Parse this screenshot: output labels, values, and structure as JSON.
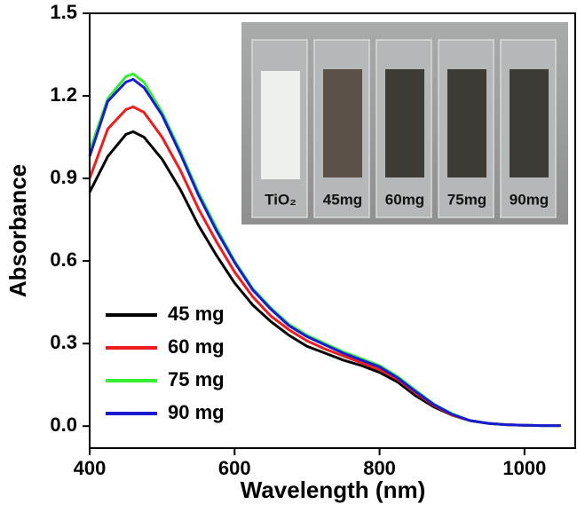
{
  "chart_data": {
    "type": "line",
    "xlabel": "Wavelength (nm)",
    "ylabel": "Absorbance",
    "x": [
      400,
      425,
      450,
      460,
      475,
      500,
      525,
      550,
      575,
      600,
      625,
      650,
      675,
      700,
      725,
      750,
      775,
      800,
      825,
      850,
      875,
      900,
      925,
      950,
      975,
      1000,
      1025,
      1050
    ],
    "series": [
      {
        "name": "45 mg",
        "color": "#000000",
        "values": [
          0.85,
          0.98,
          1.06,
          1.07,
          1.05,
          0.97,
          0.86,
          0.73,
          0.62,
          0.52,
          0.44,
          0.38,
          0.33,
          0.29,
          0.265,
          0.24,
          0.22,
          0.195,
          0.16,
          0.11,
          0.07,
          0.04,
          0.02,
          0.01,
          0.005,
          0.003,
          0.002,
          0.002
        ]
      },
      {
        "name": "60 mg",
        "color": "#ee1c1c",
        "values": [
          0.9,
          1.08,
          1.15,
          1.16,
          1.14,
          1.05,
          0.93,
          0.79,
          0.67,
          0.56,
          0.47,
          0.4,
          0.35,
          0.31,
          0.28,
          0.255,
          0.23,
          0.205,
          0.17,
          0.12,
          0.075,
          0.04,
          0.02,
          0.01,
          0.005,
          0.003,
          0.002,
          0.002
        ]
      },
      {
        "name": "75 mg",
        "color": "#33ee33",
        "values": [
          1.0,
          1.19,
          1.27,
          1.28,
          1.25,
          1.14,
          1.0,
          0.85,
          0.72,
          0.6,
          0.5,
          0.43,
          0.37,
          0.33,
          0.3,
          0.27,
          0.245,
          0.22,
          0.18,
          0.13,
          0.08,
          0.045,
          0.02,
          0.01,
          0.005,
          0.003,
          0.002,
          0.002
        ]
      },
      {
        "name": "90 mg",
        "color": "#1a1ad0",
        "values": [
          0.98,
          1.18,
          1.25,
          1.26,
          1.23,
          1.13,
          0.99,
          0.84,
          0.71,
          0.595,
          0.495,
          0.425,
          0.365,
          0.325,
          0.295,
          0.265,
          0.24,
          0.215,
          0.175,
          0.125,
          0.078,
          0.043,
          0.02,
          0.01,
          0.005,
          0.003,
          0.002,
          0.002
        ]
      }
    ],
    "xlim": [
      400,
      1070
    ],
    "xticks": [
      400,
      600,
      800,
      1000
    ],
    "ylim": [
      -0.08,
      1.5
    ],
    "yticks": [
      {
        "value": 0,
        "label": "0.0"
      },
      0.3,
      0.6,
      0.9,
      1.2,
      1.5
    ],
    "legend": "lower left",
    "inset_labels": [
      "TiO₂",
      "45mg",
      "60mg",
      "75mg",
      "90mg"
    ]
  }
}
